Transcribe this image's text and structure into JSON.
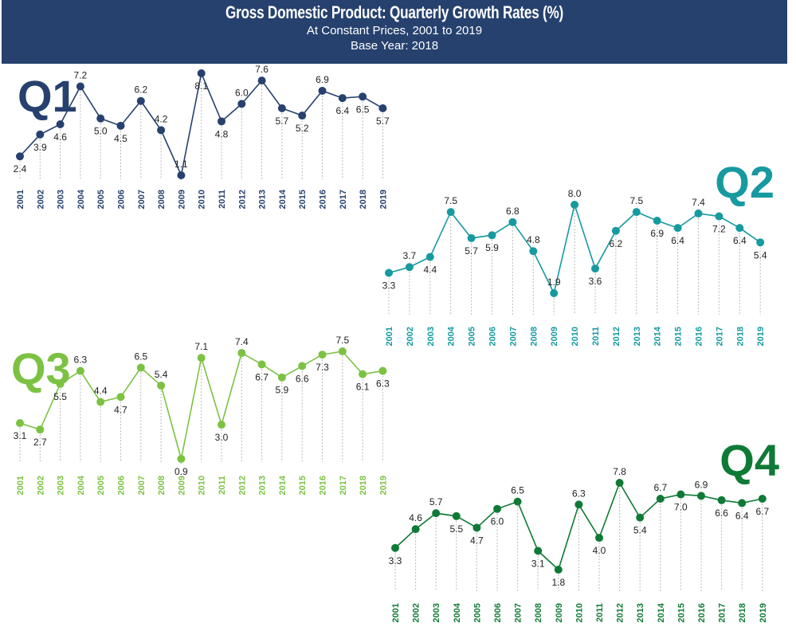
{
  "header": {
    "title": "Gross Domestic Product: Quarterly Growth Rates (%)",
    "subtitle": "At Constant Prices, 2001 to 2019",
    "base_year": "Base Year: 2018"
  },
  "colors": {
    "header_bg": "#26416e",
    "Q1": "#26416e",
    "Q2": "#169aa0",
    "Q3": "#7cc242",
    "Q4": "#0f7a35"
  },
  "chart_data": [
    {
      "type": "line",
      "name": "Q1",
      "categories": [
        "2001",
        "2002",
        "2003",
        "2004",
        "2005",
        "2006",
        "2007",
        "2008",
        "2009",
        "2010",
        "2011",
        "2012",
        "2013",
        "2014",
        "2015",
        "2016",
        "2017",
        "2018",
        "2019"
      ],
      "values": [
        2.4,
        3.9,
        4.6,
        7.2,
        5.0,
        4.5,
        6.2,
        4.2,
        1.1,
        8.1,
        4.8,
        6.0,
        7.6,
        5.7,
        5.2,
        6.9,
        6.4,
        6.5,
        5.7
      ]
    },
    {
      "type": "line",
      "name": "Q2",
      "categories": [
        "2001",
        "2002",
        "2003",
        "2004",
        "2005",
        "2006",
        "2007",
        "2008",
        "2009",
        "2010",
        "2011",
        "2012",
        "2013",
        "2014",
        "2015",
        "2016",
        "2017",
        "2018",
        "2019"
      ],
      "values": [
        3.3,
        3.7,
        4.4,
        7.5,
        5.7,
        5.9,
        6.8,
        4.8,
        1.9,
        8.0,
        3.6,
        6.2,
        7.5,
        6.9,
        6.4,
        7.4,
        7.2,
        6.4,
        5.4
      ]
    },
    {
      "type": "line",
      "name": "Q3",
      "categories": [
        "2001",
        "2002",
        "2003",
        "2004",
        "2005",
        "2006",
        "2007",
        "2008",
        "2009",
        "2010",
        "2011",
        "2012",
        "2013",
        "2014",
        "2015",
        "2016",
        "2017",
        "2018",
        "2019"
      ],
      "values": [
        3.1,
        2.7,
        5.5,
        6.3,
        4.4,
        4.7,
        6.5,
        5.4,
        0.9,
        7.1,
        3.0,
        7.4,
        6.7,
        5.9,
        6.6,
        7.3,
        7.5,
        6.1,
        6.3
      ]
    },
    {
      "type": "line",
      "name": "Q4",
      "categories": [
        "2001",
        "2002",
        "2003",
        "2004",
        "2005",
        "2006",
        "2007",
        "2008",
        "2009",
        "2010",
        "2011",
        "2012",
        "2013",
        "2014",
        "2015",
        "2016",
        "2017",
        "2018",
        "2019"
      ],
      "values": [
        3.3,
        4.6,
        5.7,
        5.5,
        4.7,
        6.0,
        6.5,
        3.1,
        1.8,
        6.3,
        4.0,
        7.8,
        5.4,
        6.7,
        7.0,
        6.9,
        6.6,
        6.4,
        6.7
      ]
    }
  ]
}
